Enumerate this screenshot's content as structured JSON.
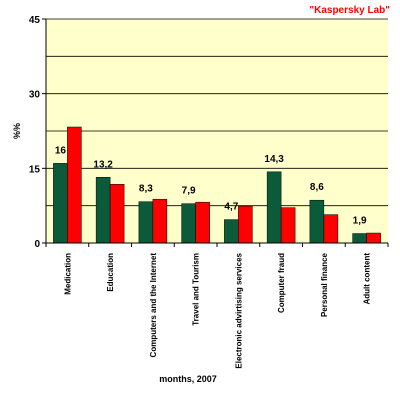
{
  "brand": "\"Kaspersky Lab\"",
  "colors": {
    "plot_bg": "#ffffcc",
    "series_dark": "#0b5a3a",
    "series_red": "#ff0000"
  },
  "chart_data": {
    "type": "bar",
    "xlabel": "months, 2007",
    "ylabel": "%%",
    "ylim": [
      0,
      45
    ],
    "yticks": [
      0,
      15,
      30,
      45
    ],
    "grid": true,
    "categories": [
      "Medication",
      "Education",
      "Computers and the Internet",
      "Travel and Tourism",
      "Electronic advirtising services",
      "Computer fraud",
      "Personal finance",
      "Adult content"
    ],
    "series": [
      {
        "color": "#0b5a3a",
        "values": [
          16,
          13.2,
          8.3,
          7.9,
          4.7,
          14.3,
          8.6,
          1.9
        ],
        "labels": [
          "16",
          "13,2",
          "8,3",
          "7,9",
          "4,7",
          "14,3",
          "8,6",
          "1,9"
        ]
      },
      {
        "color": "#ff0000",
        "values": [
          23.3,
          11.8,
          8.8,
          8.2,
          7.4,
          7.1,
          5.7,
          2.0
        ]
      }
    ]
  }
}
